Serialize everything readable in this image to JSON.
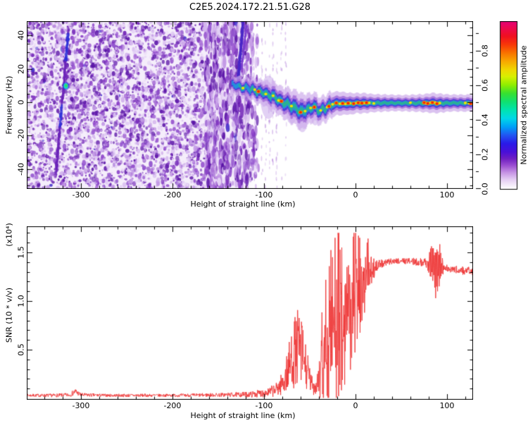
{
  "title": "C2E5.2024.172.21.51.G28",
  "colors": {
    "snr_line": "#ee3434",
    "frame": "#000000",
    "noise_bg": "#f5eefb"
  },
  "chart_data": [
    {
      "type": "heatmap",
      "name": "spectrogram",
      "xlabel": "Height of straight line (km)",
      "ylabel": "Frequency (Hz)",
      "xlim": [
        -359.2,
        128.5
      ],
      "ylim": [
        -52,
        48.6
      ],
      "x_ticks": [
        -300,
        -200,
        -100,
        0,
        100
      ],
      "x_tick_labels": [
        "-300",
        "-200",
        "-100",
        "0",
        "100"
      ],
      "x_minor_step": 20,
      "y_ticks": [
        -40,
        -20,
        0,
        20,
        40
      ],
      "y_tick_labels": [
        "-40",
        "-20",
        "0",
        "20",
        "40"
      ],
      "y_minor_step": 5,
      "colorbar": {
        "label": "Normalized spectral amplitude",
        "max": 0.97,
        "ticks": [
          0,
          0.2,
          0.4,
          0.6,
          0.8
        ],
        "tick_labels": [
          "0.0",
          "0.2",
          "0.4",
          "0.6",
          "0.8"
        ],
        "minor_step": 0.1,
        "gradient": [
          [
            0.0,
            "#ffffff"
          ],
          [
            0.02,
            "#f6eefb"
          ],
          [
            0.06,
            "#e2c8f2"
          ],
          [
            0.1,
            "#c490e4"
          ],
          [
            0.14,
            "#9b4ed2"
          ],
          [
            0.18,
            "#6f1fc2"
          ],
          [
            0.22,
            "#4a10d8"
          ],
          [
            0.27,
            "#2a1ae8"
          ],
          [
            0.32,
            "#2255f2"
          ],
          [
            0.37,
            "#00a0f8"
          ],
          [
            0.42,
            "#00d8e8"
          ],
          [
            0.47,
            "#00e4b0"
          ],
          [
            0.52,
            "#10e070"
          ],
          [
            0.57,
            "#38e030"
          ],
          [
            0.62,
            "#90ee00"
          ],
          [
            0.67,
            "#d8f000"
          ],
          [
            0.71,
            "#f0d800"
          ],
          [
            0.76,
            "#f8a800"
          ],
          [
            0.81,
            "#f87400"
          ],
          [
            0.86,
            "#f83808"
          ],
          [
            0.91,
            "#f01020"
          ],
          [
            0.96,
            "#ec0850"
          ],
          [
            1.0,
            "#e6007a"
          ]
        ]
      },
      "noise_field": {
        "x_range": [
          -359.2,
          -104
        ],
        "fade_from": -122,
        "striation_from": -165,
        "count": 5200,
        "bg": "#f5eefb",
        "palette": [
          "#ead9f7",
          "#e0ccf4",
          "#d3b5ee",
          "#c49ae6",
          "#a96fd8",
          "#9355cf",
          "#8a3fc8",
          "#7326b8",
          "#5c16a8"
        ],
        "deep": "#5c16a8",
        "blue": "#4433cc"
      },
      "diag_streaks": [
        {
          "from": [
            -313.5,
            44
          ],
          "to": [
            -327.5,
            -44
          ],
          "w": 2.0,
          "color": "#6a22b8",
          "segments": [
            {
              "from": 0.04,
              "to": 0.22,
              "color": "#2d2fd8"
            },
            {
              "from": 0.52,
              "to": 0.68,
              "color": "#2d2fd8"
            }
          ]
        },
        {
          "from": [
            -123,
            48
          ],
          "to": [
            -128.5,
            11
          ],
          "w": 1.8,
          "color": "#4a28c8",
          "segments": []
        },
        {
          "from": [
            -119,
            46
          ],
          "to": [
            -124.5,
            20
          ],
          "w": 1.1,
          "color": "#7a3fd0",
          "segments": []
        }
      ],
      "bright_blob": {
        "km": -316.5,
        "hz": 9.7,
        "core": "#3ae24e",
        "mid": "#17d6c9",
        "ring": "#2d2fd8"
      },
      "under_bulges": [
        {
          "km": -58,
          "hz_top": -2,
          "hz_bot": -18,
          "w": 6
        },
        {
          "km": -95,
          "hz_top": 16,
          "hz_bot": -10,
          "w": 9
        },
        {
          "km": -70,
          "hz_top": -4,
          "hz_bot": -13,
          "w": 5
        },
        {
          "km": -44,
          "hz_top": -6,
          "hz_bot": -14,
          "w": 4
        }
      ],
      "sparse_columns": [
        -102,
        -98,
        -94,
        -90,
        -86,
        -81,
        -76
      ],
      "trace": {
        "points": [
          [
            -135,
            10.5,
            5,
            0.5
          ],
          [
            -129,
            9.8,
            5.5,
            0.6
          ],
          [
            -123,
            8.6,
            6,
            0.65
          ],
          [
            -117,
            8.3,
            6.5,
            0.6
          ],
          [
            -111,
            7.4,
            7,
            0.65
          ],
          [
            -106,
            6.3,
            7.5,
            0.75
          ],
          [
            -100,
            5.6,
            7.5,
            0.65
          ],
          [
            -95,
            4.2,
            8,
            0.7
          ],
          [
            -90,
            3.6,
            8.5,
            0.7
          ],
          [
            -85,
            1.8,
            9,
            0.72
          ],
          [
            -81,
            0.2,
            9,
            0.8
          ],
          [
            -76,
            -0.8,
            9.5,
            0.72
          ],
          [
            -70,
            -2.2,
            10,
            0.72
          ],
          [
            -65,
            -3.4,
            10.5,
            0.75
          ],
          [
            -60,
            -5.8,
            11,
            0.8
          ],
          [
            -55,
            -5,
            10,
            0.72
          ],
          [
            -50,
            -4,
            9,
            0.76
          ],
          [
            -45,
            -2.6,
            8.5,
            0.8
          ],
          [
            -41,
            -4.6,
            8.5,
            0.76
          ],
          [
            -37,
            -5.2,
            8,
            0.72
          ],
          [
            -33,
            -3.6,
            8,
            0.76
          ],
          [
            -29,
            -2.2,
            8,
            0.8
          ],
          [
            -25,
            -1.4,
            7.5,
            0.8
          ],
          [
            -20,
            -0.6,
            7,
            0.85
          ],
          [
            -15,
            -1,
            7,
            0.8
          ],
          [
            -10,
            -0.6,
            6.5,
            0.85
          ],
          [
            -5,
            -0.9,
            6.5,
            0.9
          ],
          [
            0,
            -0.5,
            6,
            0.9
          ],
          [
            5,
            -0.6,
            6,
            0.95
          ],
          [
            10,
            -0.5,
            6,
            0.9
          ],
          [
            16,
            -0.6,
            5.5,
            0.82
          ],
          [
            24,
            -0.5,
            5.2,
            0.76
          ],
          [
            34,
            -0.5,
            5,
            0.75
          ],
          [
            44,
            -0.5,
            4.8,
            0.75
          ],
          [
            54,
            -0.5,
            4.8,
            0.76
          ],
          [
            64,
            -0.6,
            5,
            0.78
          ],
          [
            72,
            -0.5,
            5.2,
            0.85
          ],
          [
            78,
            -0.6,
            5.5,
            0.9
          ],
          [
            84,
            -0.5,
            6,
            0.92
          ],
          [
            90,
            -0.6,
            5.8,
            0.88
          ],
          [
            96,
            -0.5,
            5.4,
            0.8
          ],
          [
            104,
            -0.5,
            5,
            0.76
          ],
          [
            112,
            -0.5,
            5,
            0.76
          ],
          [
            120,
            -0.5,
            5,
            0.8
          ],
          [
            128.5,
            -0.5,
            5,
            0.88
          ]
        ],
        "hot_red": [
          -106,
          -81,
          -60,
          -45,
          -29,
          -21,
          -14,
          -8,
          -2,
          3,
          7,
          12,
          75,
          79,
          84,
          89,
          126
        ],
        "hot_yellow": [
          -123,
          -110,
          -98,
          -90,
          -84,
          -70,
          -55,
          -49,
          -38,
          -31,
          -25,
          -17,
          -11,
          -6,
          1,
          5,
          9,
          15,
          20,
          60,
          77,
          82,
          87,
          92,
          120,
          124
        ]
      }
    },
    {
      "type": "line",
      "name": "snr",
      "xlabel": "Height of straight line (km)",
      "ylabel": "SNR (10 * v/v)",
      "scale_label": "(x10⁴)",
      "xlim": [
        -359.2,
        128.5
      ],
      "ylim": [
        0,
        1.77
      ],
      "x_ticks": [
        -300,
        -200,
        -100,
        0,
        100
      ],
      "x_tick_labels": [
        "-300",
        "-200",
        "-100",
        "0",
        "100"
      ],
      "x_minor_step": 20,
      "y_ticks": [
        0.5,
        1.0,
        1.5
      ],
      "y_tick_labels": [
        "0.5",
        "1.0",
        "1.5"
      ],
      "y_minor_step": 0.1,
      "line_color": "#ee3434",
      "spike_zone": [
        -40,
        14
      ],
      "burst_zone": [
        81,
        95
      ],
      "profile": [
        [
          -359,
          0.03,
          0.015
        ],
        [
          -330,
          0.03,
          0.018
        ],
        [
          -312,
          0.035,
          0.02
        ],
        [
          -306,
          0.07,
          0.035
        ],
        [
          -300,
          0.035,
          0.02
        ],
        [
          -270,
          0.03,
          0.015
        ],
        [
          -240,
          0.03,
          0.018
        ],
        [
          -210,
          0.03,
          0.015
        ],
        [
          -180,
          0.032,
          0.018
        ],
        [
          -150,
          0.035,
          0.02
        ],
        [
          -130,
          0.038,
          0.025
        ],
        [
          -115,
          0.04,
          0.03
        ],
        [
          -105,
          0.05,
          0.04
        ],
        [
          -95,
          0.06,
          0.05
        ],
        [
          -87,
          0.09,
          0.07
        ],
        [
          -80,
          0.15,
          0.12
        ],
        [
          -74,
          0.28,
          0.22
        ],
        [
          -68,
          0.45,
          0.35
        ],
        [
          -63,
          0.52,
          0.4
        ],
        [
          -58,
          0.45,
          0.35
        ],
        [
          -53,
          0.28,
          0.22
        ],
        [
          -48,
          0.14,
          0.1
        ],
        [
          -44,
          0.12,
          0.09
        ],
        [
          -40,
          0.22,
          0.18
        ],
        [
          -36,
          0.45,
          0.4
        ],
        [
          -32,
          0.55,
          0.5
        ],
        [
          -28,
          0.62,
          0.55
        ],
        [
          -24,
          0.7,
          0.6
        ],
        [
          -20,
          0.75,
          0.62
        ],
        [
          -16,
          0.82,
          0.62
        ],
        [
          -12,
          0.92,
          0.6
        ],
        [
          -8,
          0.98,
          0.58
        ],
        [
          -4,
          1.05,
          0.52
        ],
        [
          0,
          1.1,
          0.48
        ],
        [
          4,
          1.16,
          0.42
        ],
        [
          8,
          1.22,
          0.34
        ],
        [
          12,
          1.27,
          0.26
        ],
        [
          16,
          1.31,
          0.18
        ],
        [
          20,
          1.34,
          0.11
        ],
        [
          25,
          1.37,
          0.06
        ],
        [
          32,
          1.39,
          0.035
        ],
        [
          40,
          1.41,
          0.03
        ],
        [
          50,
          1.415,
          0.03
        ],
        [
          60,
          1.41,
          0.035
        ],
        [
          70,
          1.4,
          0.04
        ],
        [
          78,
          1.39,
          0.05
        ],
        [
          83,
          1.37,
          0.18
        ],
        [
          87,
          1.36,
          0.3
        ],
        [
          91,
          1.35,
          0.28
        ],
        [
          94,
          1.34,
          0.12
        ],
        [
          98,
          1.33,
          0.05
        ],
        [
          105,
          1.325,
          0.04
        ],
        [
          112,
          1.32,
          0.04
        ],
        [
          120,
          1.31,
          0.045
        ],
        [
          128,
          1.3,
          0.05
        ]
      ]
    }
  ]
}
